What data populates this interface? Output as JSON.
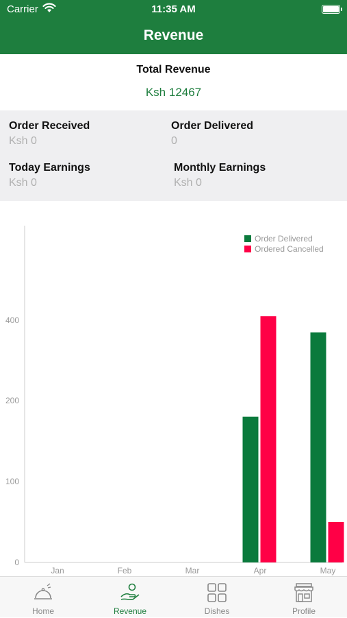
{
  "status_bar": {
    "carrier": "Carrier",
    "time": "11:35 AM"
  },
  "header": {
    "title": "Revenue"
  },
  "total_revenue": {
    "label": "Total Revenue",
    "value": "Ksh 12467"
  },
  "stats": {
    "order_received": {
      "label": "Order Received",
      "value": "Ksh 0"
    },
    "order_delivered": {
      "label": "Order Delivered",
      "value": "0"
    },
    "today_earnings": {
      "label": "Today Earnings",
      "value": "Ksh 0"
    },
    "monthly_earnings": {
      "label": "Monthly Earnings",
      "value": "Ksh 0"
    }
  },
  "colors": {
    "brand": "#1e7e3e",
    "delivered": "#0a7a3c",
    "cancelled": "#ff0046"
  },
  "chart_data": {
    "type": "bar",
    "categories": [
      "Jan",
      "Feb",
      "Mar",
      "Apr",
      "May"
    ],
    "series": [
      {
        "name": "Order Delivered",
        "color": "#0a7a3c",
        "values": [
          0,
          0,
          0,
          180,
          370
        ]
      },
      {
        "name": "Ordered Cancelled",
        "color": "#ff0046",
        "values": [
          0,
          0,
          0,
          410,
          50
        ]
      }
    ],
    "yticks": [
      {
        "label": "0",
        "value": 0
      },
      {
        "label": "100",
        "value": 100
      },
      {
        "label": "200",
        "value": 200
      },
      {
        "label": "400",
        "value": 400
      }
    ],
    "ylim": [
      0,
      500
    ],
    "grid": false,
    "legend_position": "top-right"
  },
  "tabs": [
    {
      "label": "Home",
      "icon": "cloche-icon",
      "active": false
    },
    {
      "label": "Revenue",
      "icon": "money-hand-icon",
      "active": true
    },
    {
      "label": "Dishes",
      "icon": "grid-icon",
      "active": false
    },
    {
      "label": "Profile",
      "icon": "store-icon",
      "active": false
    }
  ]
}
